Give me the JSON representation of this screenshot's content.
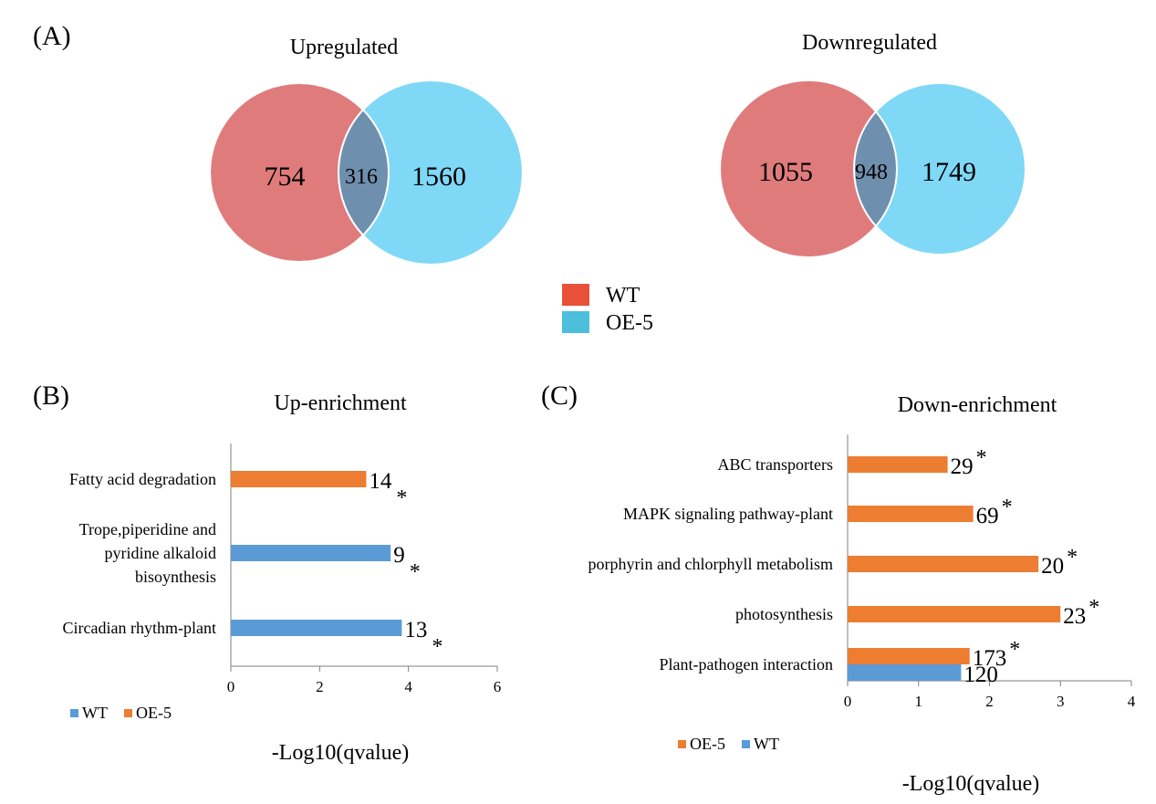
{
  "panel_labels": {
    "a": "(A)",
    "b": "(B)",
    "c": "(C)"
  },
  "colors": {
    "wt": "#e07b7c",
    "oe5": "#80d8f7",
    "overlap": "#6f8fae",
    "legend_wt": "#e8503a",
    "legend_oe5": "#4cbfdc",
    "bar_orange": "#ed7d31",
    "bar_blue": "#5b9bd5",
    "axis": "#7f7f7f"
  },
  "venn_legend": {
    "items": [
      {
        "label": "WT",
        "color": "#e8503a"
      },
      {
        "label": "OE-5",
        "color": "#4cbfdc"
      }
    ]
  },
  "chart_data": [
    {
      "type": "venn",
      "title": "Upregulated",
      "sets": [
        "WT",
        "OE-5"
      ],
      "values": {
        "wt_only": 754,
        "overlap": 316,
        "oe5_only": 1560
      },
      "labels": {
        "wt_only": "754",
        "overlap": "316",
        "oe5_only": "1560"
      }
    },
    {
      "type": "venn",
      "title": "Downregulated",
      "sets": [
        "WT",
        "OE-5"
      ],
      "values": {
        "wt_only": 1055,
        "overlap": 948,
        "oe5_only": 1749
      },
      "labels": {
        "wt_only": "1055",
        "overlap": "948",
        "oe5_only": "1749"
      }
    },
    {
      "type": "bar",
      "orientation": "horizontal",
      "title": "Up-enrichment",
      "xlabel": "-Log10(qvalue)",
      "xlim": [
        0,
        6
      ],
      "xticks": [
        "0",
        "2",
        "4",
        "6"
      ],
      "legend": {
        "placement": "bottom-left",
        "items": [
          {
            "name": "WT",
            "color": "#5b9bd5"
          },
          {
            "name": "OE-5",
            "color": "#ed7d31"
          }
        ]
      },
      "categories": [
        {
          "lines": [
            "Fatty acid degradation"
          ]
        },
        {
          "lines": [
            "Trope,piperidine and",
            "pyridine alkaloid",
            "bisoynthesis"
          ]
        },
        {
          "lines": [
            "Circadian rhythm-plant"
          ]
        }
      ],
      "bars": [
        {
          "category": 0,
          "series": "OE-5",
          "value": 3.05,
          "label": "14",
          "star": "*"
        },
        {
          "category": 1,
          "series": "WT",
          "value": 3.6,
          "label": "9",
          "star": "*"
        },
        {
          "category": 2,
          "series": "WT",
          "value": 3.85,
          "label": "13",
          "star": "*"
        }
      ]
    },
    {
      "type": "bar",
      "orientation": "horizontal",
      "title": "Down-enrichment",
      "xlabel": "-Log10(qvalue)",
      "xlim": [
        0,
        4
      ],
      "xticks": [
        "0",
        "1",
        "2",
        "3",
        "4"
      ],
      "legend": {
        "placement": "bottom-left",
        "items": [
          {
            "name": "OE-5",
            "color": "#ed7d31"
          },
          {
            "name": "WT",
            "color": "#5b9bd5"
          }
        ]
      },
      "categories": [
        {
          "lines": [
            "ABC transporters"
          ]
        },
        {
          "lines": [
            "MAPK signaling pathway-plant"
          ]
        },
        {
          "lines": [
            "porphyrin and chlorphyll metabolism"
          ]
        },
        {
          "lines": [
            "photosynthesis"
          ]
        },
        {
          "lines": [
            "Plant-pathogen interaction"
          ]
        }
      ],
      "bars": [
        {
          "category": 0,
          "series": "OE-5",
          "value": 1.41,
          "label": "29",
          "star": "*"
        },
        {
          "category": 1,
          "series": "OE-5",
          "value": 1.77,
          "label": "69",
          "star": "*"
        },
        {
          "category": 2,
          "series": "OE-5",
          "value": 2.69,
          "label": "20",
          "star": "*"
        },
        {
          "category": 3,
          "series": "OE-5",
          "value": 3.0,
          "label": "23",
          "star": "*"
        },
        {
          "category": 4,
          "series": "OE-5",
          "value": 1.72,
          "label": "173",
          "star": "*"
        },
        {
          "category": 4,
          "series": "WT",
          "value": 1.6,
          "label": "120",
          "star": ""
        }
      ]
    }
  ]
}
